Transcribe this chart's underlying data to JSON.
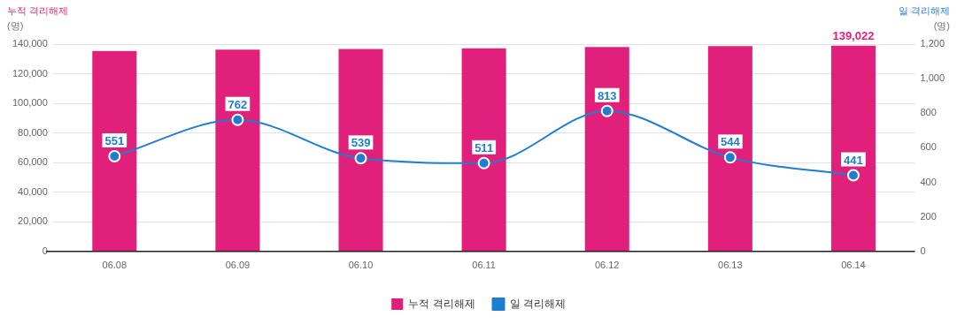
{
  "chart_data": {
    "type": "bar",
    "ylabel": "누적 격리해제\n(명)",
    "y2label": "일 격리해제\n(명)",
    "categories": [
      "06.08",
      "06.09",
      "06.10",
      "06.11",
      "06.12",
      "06.13",
      "06.14"
    ],
    "series": [
      {
        "name": "누적 격리해제",
        "color": "#e0207b",
        "values": [
          135400,
          136200,
          136700,
          137200,
          138000,
          138600,
          139022
        ],
        "value_labels": [
          null,
          null,
          null,
          null,
          null,
          null,
          "139,022"
        ]
      },
      {
        "name": "일 격리해제",
        "type": "line",
        "axis": "y2",
        "color": "#1f7dd0",
        "values": [
          551,
          762,
          539,
          511,
          813,
          544,
          441
        ],
        "value_labels": [
          "551",
          "762",
          "539",
          "511",
          "813",
          "544",
          "441"
        ]
      }
    ],
    "ylim": [
      0,
      140000
    ],
    "yticks": [
      {
        "value": 0,
        "label": "0"
      },
      {
        "value": 20000,
        "label": "20,000"
      },
      {
        "value": 40000,
        "label": "40,000"
      },
      {
        "value": 60000,
        "label": "60,000"
      },
      {
        "value": 80000,
        "label": "80,000"
      },
      {
        "value": 100000,
        "label": "100,000"
      },
      {
        "value": 120000,
        "label": "120,000"
      },
      {
        "value": 140000,
        "label": "140,000"
      }
    ],
    "y2lim": [
      0,
      1200
    ],
    "y2ticks": [
      0,
      200,
      400,
      600,
      800,
      {
        "value": 1000,
        "label": "1,000"
      },
      {
        "value": 1200,
        "label": "1,200"
      }
    ],
    "grid": "y",
    "legend": "bottom",
    "marker": "circle",
    "line_style": "solid"
  }
}
